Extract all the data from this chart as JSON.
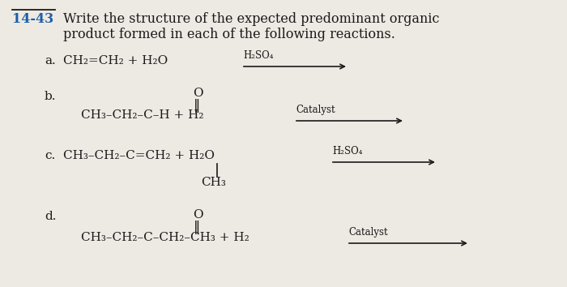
{
  "bg_color": "#ede9e3",
  "text_color": "#1a1a1a",
  "blue_color": "#1a5fa8",
  "title_num": "14-43",
  "title_line1": "Write the structure of the expected predominant organic",
  "title_line2": "product formed in each of the following reactions.",
  "label_a": "a.",
  "rxn_a": "CH₂=CH₂ + H₂O",
  "cond_a": "H₂SO₄",
  "label_b": "b.",
  "rxn_b_main": "CH₃–CH₂–C–H + H₂",
  "rxn_b_O": "O",
  "cond_b": "Catalyst",
  "label_c": "c.",
  "rxn_c_main": "CH₃–CH₂–C=CH₂ + H₂O",
  "rxn_c_branch": "CH₃",
  "cond_c": "H₂SO₄",
  "label_d": "d.",
  "rxn_d_main": "CH₃–CH₂–C–CH₂–CH₃ + H₂",
  "rxn_d_O": "O",
  "cond_d": "Catalyst",
  "fs_title": 11.5,
  "fs_num": 11.5,
  "fs_rxn": 11.0,
  "fs_cond": 8.5,
  "fs_O": 11.0
}
